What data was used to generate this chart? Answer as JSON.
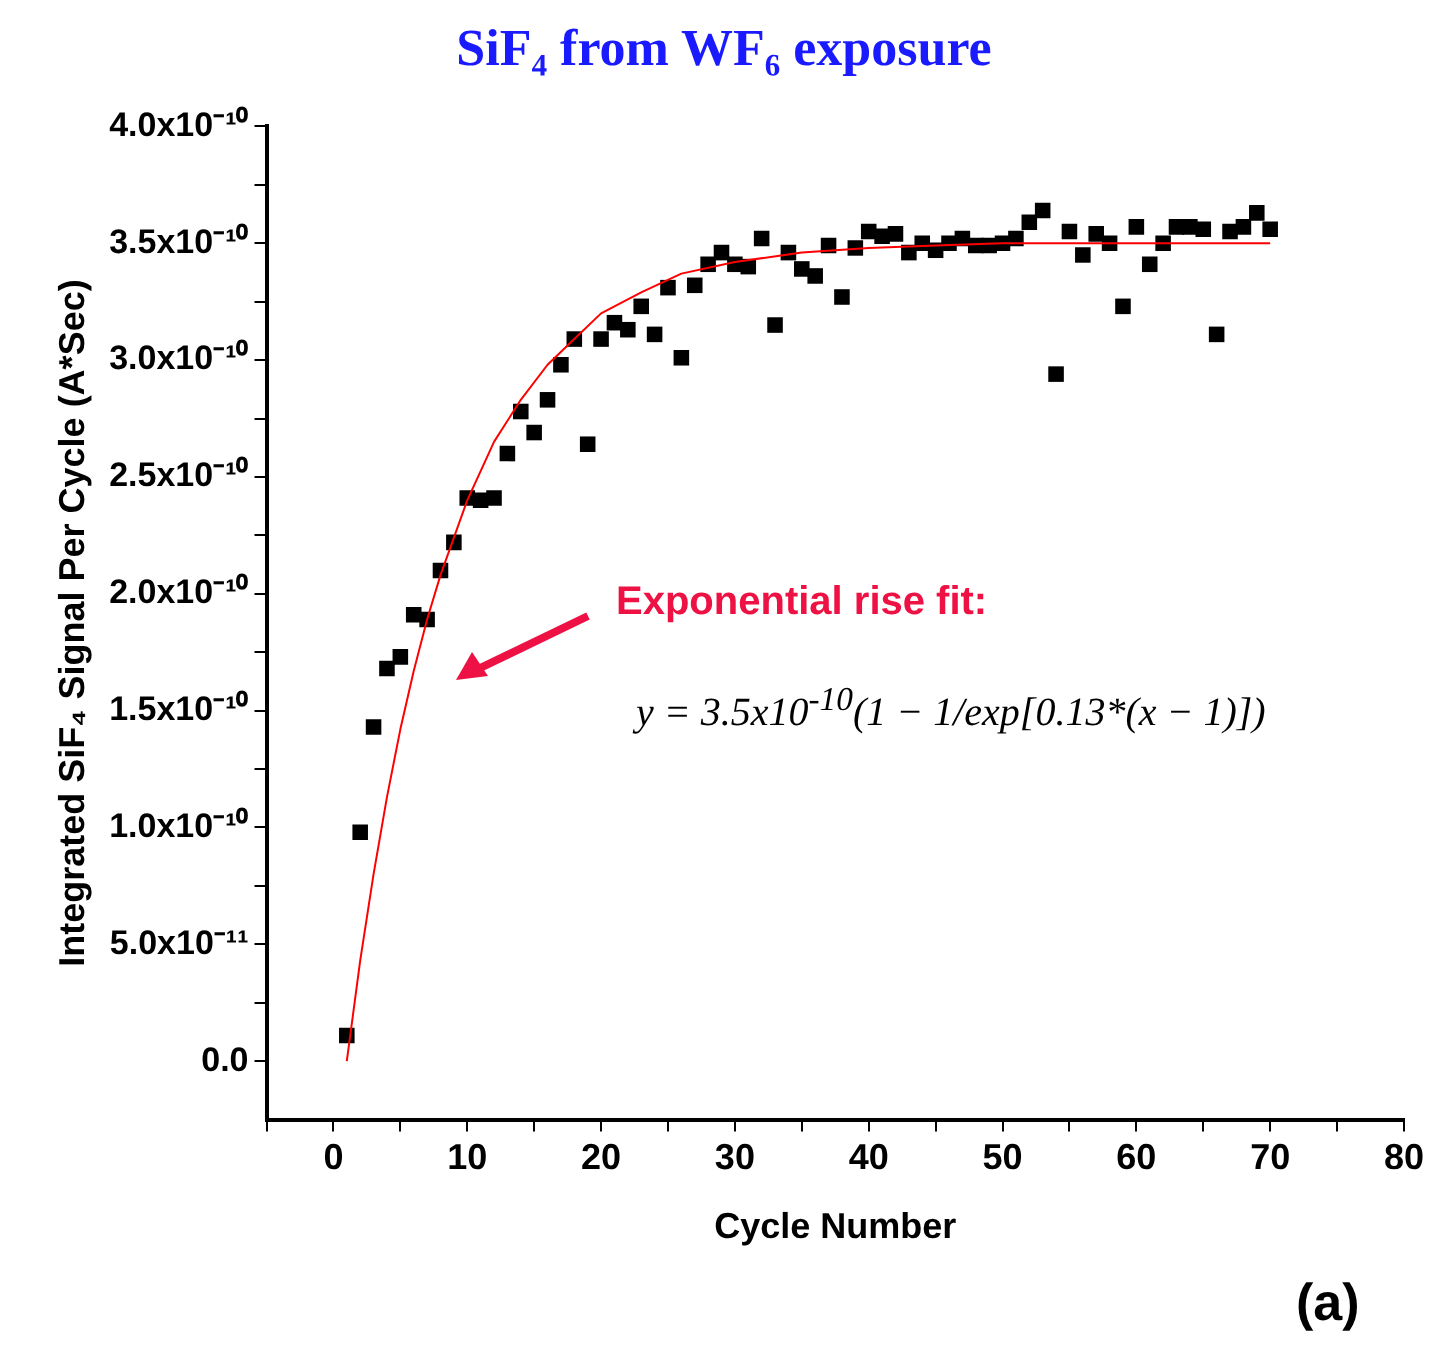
{
  "chart_data": {
    "type": "scatter",
    "title": "SiF₄ from WF₆ exposure",
    "xlabel": "Cycle Number",
    "ylabel": "Integrated SiF₄ Signal Per Cycle (A*Sec)",
    "annotations": [
      "Exponential rise fit:",
      "y = 3.5x10$^{-10}$(1 − 1/exp[0.13*(x − 1)])",
      "(a)"
    ],
    "xlim": [
      -5,
      80
    ],
    "xticks": [
      {
        "value": -5,
        "label": null
      },
      0,
      {
        "value": 5,
        "label": null
      },
      10,
      {
        "value": 15,
        "label": null
      },
      20,
      {
        "value": 25,
        "label": null
      },
      30,
      {
        "value": 35,
        "label": null
      },
      40,
      {
        "value": 45,
        "label": null
      },
      50,
      {
        "value": 55,
        "label": null
      },
      60,
      {
        "value": 65,
        "label": null
      },
      70,
      {
        "value": 75,
        "label": null
      },
      80
    ],
    "ylim": [
      -2.5e-11,
      4e-10
    ],
    "yticks": [
      {
        "value": 0,
        "label": "0.0"
      },
      {
        "value": 2.5e-11,
        "label": null
      },
      {
        "value": 5e-11,
        "label": "5.0x10⁻¹¹"
      },
      {
        "value": 7.5e-11,
        "label": null
      },
      {
        "value": 1e-10,
        "label": "1.0x10⁻¹⁰"
      },
      {
        "value": 1.25e-10,
        "label": null
      },
      {
        "value": 1.5e-10,
        "label": "1.5x10⁻¹⁰"
      },
      {
        "value": 1.75e-10,
        "label": null
      },
      {
        "value": 2e-10,
        "label": "2.0x10⁻¹⁰"
      },
      {
        "value": 2.25e-10,
        "label": null
      },
      {
        "value": 2.5e-10,
        "label": "2.5x10⁻¹⁰"
      },
      {
        "value": 2.75e-10,
        "label": null
      },
      {
        "value": 3e-10,
        "label": "3.0x10⁻¹⁰"
      },
      {
        "value": 3.25e-10,
        "label": null
      },
      {
        "value": 3.5e-10,
        "label": "3.5x10⁻¹⁰"
      },
      {
        "value": 3.75e-10,
        "label": null
      },
      {
        "value": 4e-10,
        "label": "4.0x10⁻¹⁰"
      }
    ],
    "grid": false,
    "legend": false,
    "series": [
      {
        "color": "#000000",
        "marker": "square",
        "x": [
          1,
          2,
          3,
          4,
          5,
          6,
          7,
          8,
          9,
          10,
          11,
          12,
          13,
          14,
          15,
          16,
          17,
          18,
          19,
          20,
          21,
          22,
          23,
          24,
          25,
          26,
          27,
          28,
          29,
          30,
          31,
          32,
          33,
          34,
          35,
          36,
          37,
          38,
          39,
          40,
          41,
          42,
          43,
          44,
          45,
          46,
          47,
          48,
          49,
          50,
          51,
          52,
          53,
          54,
          55,
          56,
          57,
          58,
          59,
          60,
          61,
          62,
          63,
          64,
          65,
          66,
          67,
          68,
          69,
          70
        ],
        "values": [
          1.1e-11,
          9.8e-11,
          1.43e-10,
          1.68e-10,
          1.73e-10,
          1.91e-10,
          1.89e-10,
          2.1e-10,
          2.22e-10,
          2.41e-10,
          2.4e-10,
          2.41e-10,
          2.6e-10,
          2.78e-10,
          2.69e-10,
          2.83e-10,
          2.98e-10,
          3.09e-10,
          2.64e-10,
          3.09e-10,
          3.16e-10,
          3.13e-10,
          3.23e-10,
          3.11e-10,
          3.31e-10,
          3.01e-10,
          3.32e-10,
          3.41e-10,
          3.46e-10,
          3.41e-10,
          3.4e-10,
          3.52e-10,
          3.15e-10,
          3.46e-10,
          3.39e-10,
          3.36e-10,
          3.49e-10,
          3.27e-10,
          3.48e-10,
          3.55e-10,
          3.53e-10,
          3.54e-10,
          3.46e-10,
          3.5e-10,
          3.47e-10,
          3.5e-10,
          3.52e-10,
          3.49e-10,
          3.49e-10,
          3.5e-10,
          3.52e-10,
          3.59e-10,
          3.64e-10,
          2.94e-10,
          3.55e-10,
          3.45e-10,
          3.54e-10,
          3.5e-10,
          3.23e-10,
          3.57e-10,
          3.41e-10,
          3.5e-10,
          3.57e-10,
          3.57e-10,
          3.56e-10,
          3.11e-10,
          3.55e-10,
          3.57e-10,
          3.63e-10,
          3.56e-10
        ]
      },
      {
        "type": "line",
        "color": "#ff0000",
        "marker": "none",
        "line_style": "solid",
        "x": [
          1,
          2,
          3,
          4,
          5,
          6,
          7,
          8,
          10,
          12,
          14,
          16,
          18,
          20,
          23,
          26,
          30,
          35,
          40,
          45,
          50,
          60,
          70
        ],
        "values": [
          0,
          4.3e-11,
          8e-11,
          1.13e-10,
          1.42e-10,
          1.67e-10,
          1.89e-10,
          2.08e-10,
          2.4e-10,
          2.65e-10,
          2.83e-10,
          2.98e-10,
          3.09e-10,
          3.2e-10,
          3.29e-10,
          3.37e-10,
          3.42e-10,
          3.46e-10,
          3.48e-10,
          3.49e-10,
          3.5e-10,
          3.5e-10,
          3.5e-10
        ]
      }
    ]
  }
}
